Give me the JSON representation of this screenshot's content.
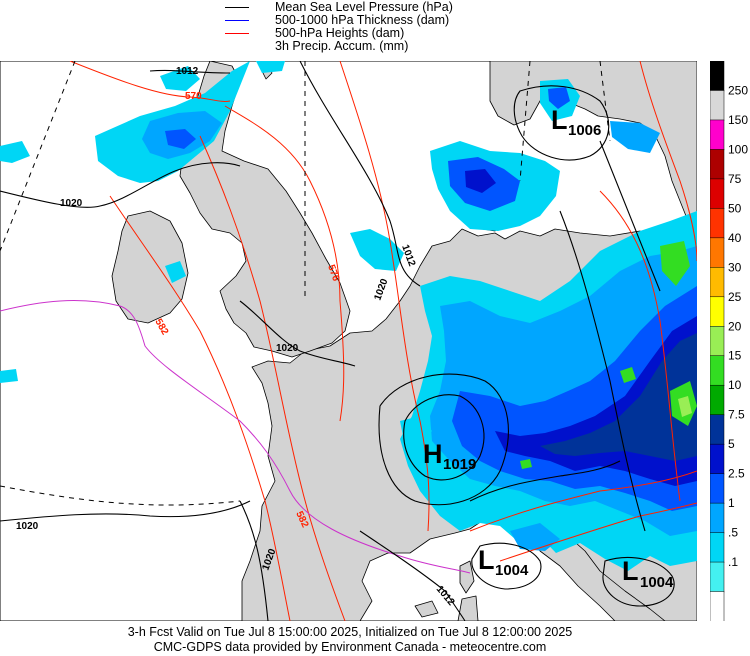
{
  "legend": [
    {
      "label": "Mean Sea Level Pressure (hPa)",
      "color": "#000000"
    },
    {
      "label": "500-1000 hPa Thickness (dam)",
      "color": "#0000ff"
    },
    {
      "label": "500-hPa Heights (dam)",
      "color": "#ff0000"
    },
    {
      "label": "3h Precip. Accum. (mm)",
      "color": ""
    }
  ],
  "colorbar": {
    "labels": [
      "250",
      "150",
      "100",
      "75",
      "50",
      "40",
      "30",
      "25",
      "20",
      "15",
      "10",
      "7.5",
      "5",
      "2.5",
      "1",
      ".5",
      ".1"
    ],
    "colors": [
      "#000000",
      "#d8d8d8",
      "#ff00cc",
      "#ad0000",
      "#dd0000",
      "#ff3300",
      "#ff7700",
      "#ffbb00",
      "#ffff00",
      "#99ee55",
      "#33dd22",
      "#00aa00",
      "#003399",
      "#0011cc",
      "#0055ff",
      "#00a6ff",
      "#00d6f5",
      "#44f0f0",
      "#ffffff"
    ]
  },
  "pressure_systems": [
    {
      "letter": "L",
      "value": "1006"
    },
    {
      "letter": "H",
      "value": "1019"
    },
    {
      "letter": "L",
      "value": "1004"
    },
    {
      "letter": "L",
      "value": "1004"
    }
  ],
  "isobar_labels": [
    "1012",
    "1020",
    "1012",
    "1020",
    "1020",
    "1020",
    "1020",
    "1012"
  ],
  "height_labels": [
    "570",
    "576",
    "582",
    "582"
  ],
  "colors": {
    "land": "#d3d3d3",
    "sea": "#ffffff",
    "isobar": "#000000",
    "height": "#ff2200",
    "thickness_purple": "#cc33cc",
    "precip_light": "#00e6f0",
    "precip_mid": "#00a6ff",
    "precip_blue": "#0055ff",
    "precip_dark": "#0011cc",
    "precip_navy": "#003399",
    "precip_green": "#33dd22"
  },
  "footer": {
    "line1": "3-h Fcst Valid on Tue Jul  8 15:00:00 2025, Initialized on Tue Jul  8 12:00:00 2025",
    "line2": "CMC-GDPS data provided by Environment Canada - meteocentre.com"
  }
}
